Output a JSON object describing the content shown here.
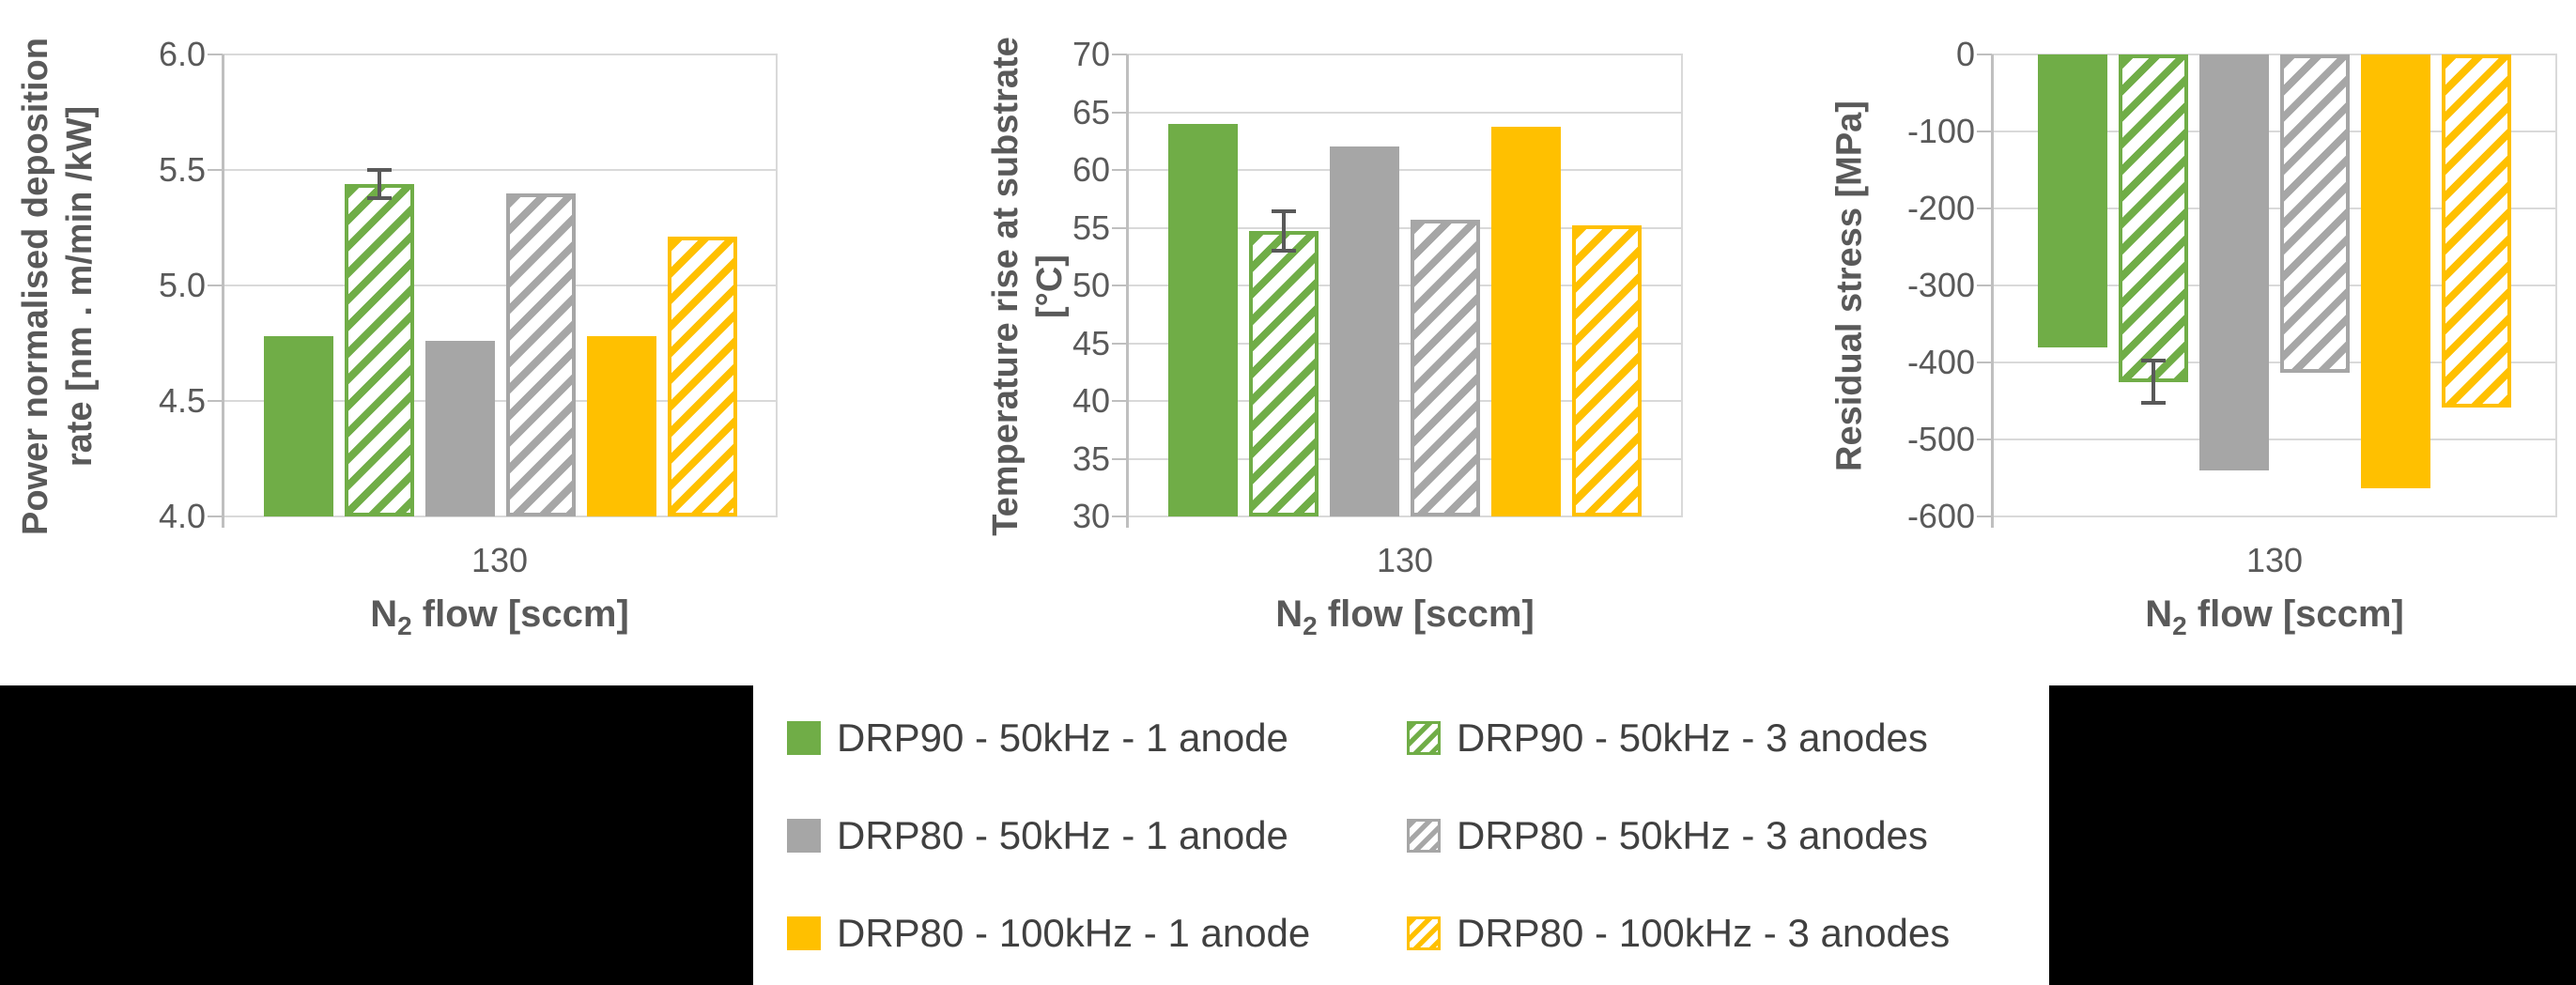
{
  "colors": {
    "green": "#70AD47",
    "gray": "#A6A6A6",
    "yellow": "#FFC000",
    "gridline": "#D9D9D9",
    "axis": "#BFBFBF",
    "text": "#595959",
    "error_bar": "#595959",
    "band": "#000000",
    "background": "#FFFFFF"
  },
  "legend": {
    "position": "bottom-center",
    "items": [
      {
        "label": "DRP90 - 50kHz - 1 anode",
        "color": "green",
        "pattern": "solid"
      },
      {
        "label": "DRP90 - 50kHz - 3 anodes",
        "color": "green",
        "pattern": "hatch"
      },
      {
        "label": "DRP80 - 50kHz - 1 anode",
        "color": "gray",
        "pattern": "solid"
      },
      {
        "label": "DRP80 - 50kHz - 3 anodes",
        "color": "gray",
        "pattern": "hatch"
      },
      {
        "label": "DRP80 - 100kHz - 1 anode",
        "color": "yellow",
        "pattern": "solid"
      },
      {
        "label": "DRP80 - 100kHz - 3 anodes",
        "color": "yellow",
        "pattern": "hatch"
      }
    ]
  },
  "chart_data": [
    {
      "type": "bar",
      "ylabel_line1": "Power normalised deposition",
      "ylabel_line2": "rate  [nm . m/min /kW]",
      "xlabel": {
        "pre": "N",
        "sub": "2",
        "post": " flow [sccm]"
      },
      "categories": [
        "130"
      ],
      "ylim": [
        4.0,
        6.0
      ],
      "yticks": [
        "6.0",
        "5.5",
        "5.0",
        "4.5",
        "4.0"
      ],
      "baseline": "bottom",
      "grid": true,
      "series": [
        {
          "name": "DRP90 - 50kHz - 1 anode",
          "value": 4.78
        },
        {
          "name": "DRP90 - 50kHz - 3 anodes",
          "value": 5.44,
          "error": 0.06
        },
        {
          "name": "DRP80 - 50kHz - 1 anode",
          "value": 4.76
        },
        {
          "name": "DRP80 - 50kHz - 3 anodes",
          "value": 5.4
        },
        {
          "name": "DRP80 - 100kHz - 1 anode",
          "value": 4.78
        },
        {
          "name": "DRP80 - 100kHz - 3 anodes",
          "value": 5.21
        }
      ]
    },
    {
      "type": "bar",
      "ylabel_line1": "Temperature rise at substrate",
      "ylabel_line2": "[°C]",
      "xlabel": {
        "pre": "N",
        "sub": "2",
        "post": " flow [sccm]"
      },
      "categories": [
        "130"
      ],
      "ylim": [
        30,
        70
      ],
      "yticks": [
        "70",
        "65",
        "60",
        "55",
        "50",
        "45",
        "40",
        "35",
        "30"
      ],
      "baseline": "bottom",
      "grid": true,
      "series": [
        {
          "name": "DRP90 - 50kHz - 1 anode",
          "value": 64.0
        },
        {
          "name": "DRP90 - 50kHz - 3 anodes",
          "value": 54.7,
          "error": 1.7
        },
        {
          "name": "DRP80 - 50kHz - 1 anode",
          "value": 62.0
        },
        {
          "name": "DRP80 - 50kHz - 3 anodes",
          "value": 55.7
        },
        {
          "name": "DRP80 - 100kHz - 1 anode",
          "value": 63.7
        },
        {
          "name": "DRP80 - 100kHz - 3 anodes",
          "value": 55.2
        }
      ]
    },
    {
      "type": "bar",
      "ylabel_line1": "Residual stress  [MPa]",
      "xlabel": {
        "pre": "N",
        "sub": "2",
        "post": " flow [sccm]"
      },
      "categories": [
        "130"
      ],
      "ylim": [
        -600,
        0
      ],
      "yticks": [
        "0",
        "-100",
        "-200",
        "-300",
        "-400",
        "-500",
        "-600"
      ],
      "baseline": "top",
      "grid": true,
      "series": [
        {
          "name": "DRP90 - 50kHz - 1 anode",
          "value": -380
        },
        {
          "name": "DRP90 - 50kHz - 3 anodes",
          "value": -425,
          "error": 28
        },
        {
          "name": "DRP80 - 50kHz - 1 anode",
          "value": -540
        },
        {
          "name": "DRP80 - 50kHz - 3 anodes",
          "value": -413
        },
        {
          "name": "DRP80 - 100kHz - 1 anode",
          "value": -563
        },
        {
          "name": "DRP80 - 100kHz - 3 anodes",
          "value": -458
        }
      ]
    }
  ]
}
